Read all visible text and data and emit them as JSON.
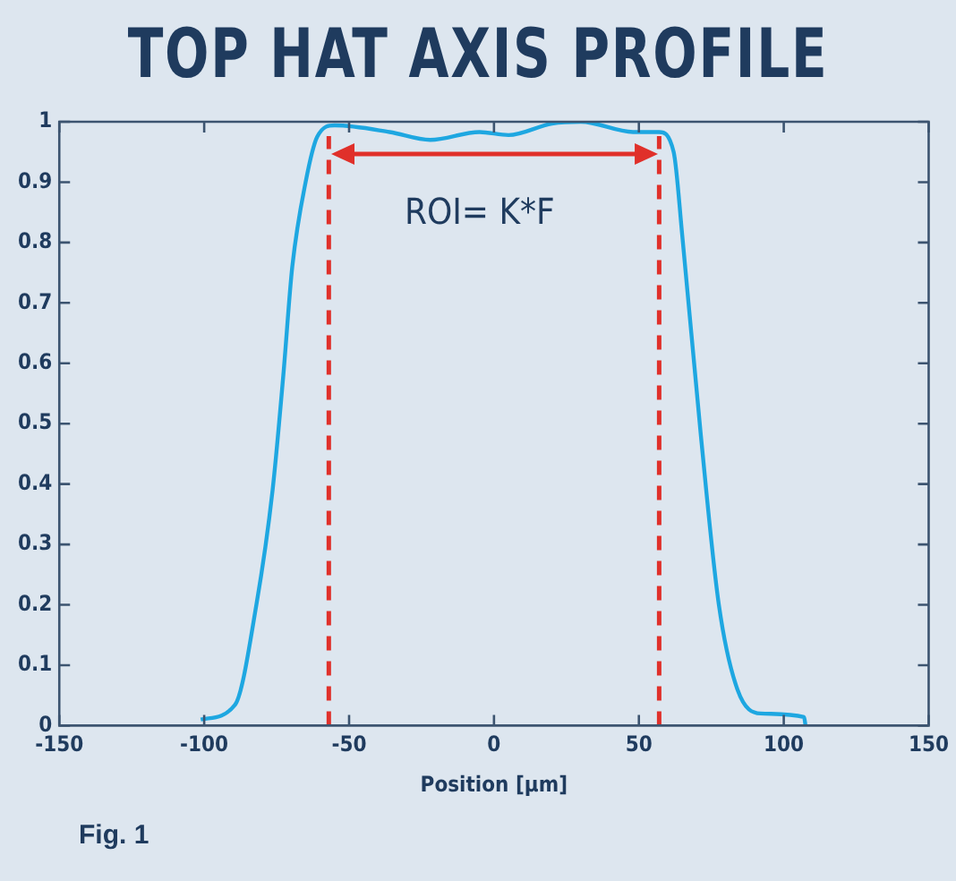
{
  "chart_data": {
    "type": "line",
    "title": "TOP HAT AXIS PROFILE",
    "xlabel": "Position [µm]",
    "x": [
      -101.2,
      -89.4,
      -82,
      -76.4,
      -72.7,
      -69.6,
      -65,
      -61,
      -55,
      -36,
      -22,
      -5,
      5,
      20,
      30,
      48,
      57,
      62,
      65,
      71.4,
      77.6,
      84,
      92,
      107,
      107.5
    ],
    "series": [
      {
        "color": "#1ea7e1",
        "values": [
          0.01,
          0.034,
          0.2,
          0.39,
          0.58,
          0.76,
          0.9,
          0.975,
          0.994,
          0.983,
          0.97,
          0.983,
          0.978,
          0.997,
          1.0,
          0.983,
          0.983,
          0.95,
          0.81,
          0.48,
          0.2,
          0.06,
          0.02,
          0.014,
          0
        ]
      }
    ],
    "xlim": [
      -150,
      150
    ],
    "ylim": [
      0,
      1
    ],
    "xticks": [
      -150,
      -100,
      -50,
      0,
      50,
      100,
      150
    ],
    "yticks": [
      0,
      0.1,
      0.2,
      0.3,
      0.4,
      0.5,
      0.6,
      0.7,
      0.8,
      0.9,
      1
    ],
    "ref_lines": [
      {
        "axis": "x",
        "value": -57,
        "label": null,
        "color": "#e0302a",
        "line_style": "dashed"
      },
      {
        "axis": "x",
        "value": 57,
        "label": null,
        "color": "#e0302a",
        "line_style": "dashed"
      }
    ],
    "annotations": [
      "ROI= K*F",
      "Fig. 1"
    ],
    "grid": false,
    "legend": false,
    "marker": "none",
    "line_style": "solid"
  }
}
